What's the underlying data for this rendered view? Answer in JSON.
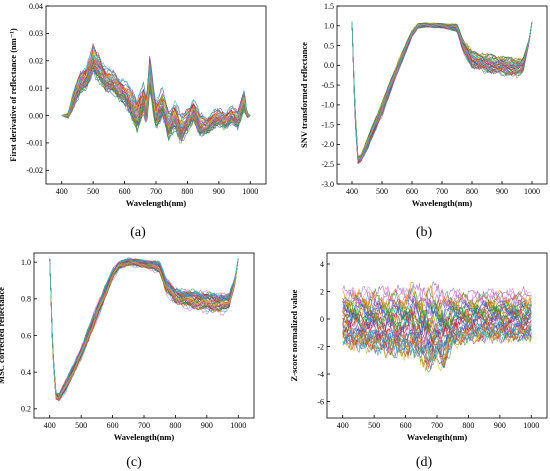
{
  "chart_data": [
    {
      "id": "a",
      "type": "line",
      "caption": "(a)",
      "xlabel": "Wavelength(nm)",
      "ylabel": "First derivative of reflectance (nm⁻¹)",
      "xlim": [
        350,
        1050
      ],
      "ylim": [
        -0.025,
        0.04
      ],
      "xticks": [
        400,
        500,
        600,
        700,
        800,
        900,
        1000
      ],
      "yticks": [
        -0.02,
        -0.01,
        0.0,
        0.01,
        0.02,
        0.03,
        0.04
      ],
      "ytick_labels": [
        "-0.02",
        "-0.01",
        "0.00",
        "0.01",
        "0.02",
        "0.03",
        "0.04"
      ],
      "band": {
        "x": [
          400,
          420,
          440,
          460,
          480,
          500,
          510,
          520,
          540,
          560,
          580,
          600,
          620,
          640,
          660,
          670,
          680,
          700,
          720,
          740,
          760,
          780,
          800,
          820,
          840,
          860,
          880,
          900,
          920,
          940,
          960,
          980,
          990,
          1000
        ],
        "mid": [
          0.0,
          0.0,
          0.006,
          0.012,
          0.014,
          0.02,
          0.018,
          0.017,
          0.013,
          0.012,
          0.01,
          0.008,
          0.004,
          0.0,
          0.006,
          0.0,
          0.015,
          0.0,
          0.004,
          -0.004,
          0.0,
          -0.006,
          -0.002,
          0.002,
          -0.004,
          -0.004,
          -0.002,
          -0.001,
          -0.002,
          0.0,
          -0.002,
          0.006,
          0.0,
          0.0
        ],
        "spread": [
          0.0,
          0.001,
          0.003,
          0.004,
          0.004,
          0.005,
          0.005,
          0.005,
          0.004,
          0.004,
          0.004,
          0.004,
          0.005,
          0.006,
          0.005,
          0.005,
          0.006,
          0.005,
          0.005,
          0.005,
          0.005,
          0.005,
          0.004,
          0.004,
          0.004,
          0.003,
          0.003,
          0.003,
          0.003,
          0.003,
          0.003,
          0.004,
          0.001,
          0.0
        ]
      }
    },
    {
      "id": "b",
      "type": "line",
      "caption": "(b)",
      "xlabel": "Wavelength(nm)",
      "ylabel": "SNV transformed reflectance",
      "xlim": [
        350,
        1050
      ],
      "ylim": [
        -3.0,
        1.5
      ],
      "xticks": [
        400,
        500,
        600,
        700,
        800,
        900,
        1000
      ],
      "yticks": [
        -3.0,
        -2.5,
        -2.0,
        -1.5,
        -1.0,
        -0.5,
        0.0,
        0.5,
        1.0,
        1.5
      ],
      "ytick_labels": [
        "-3.0",
        "-2.5",
        "-2.0",
        "-1.5",
        "-1.0",
        "-0.5",
        "0.0",
        "0.5",
        "1.0",
        "1.5"
      ],
      "band": {
        "x": [
          400,
          410,
          420,
          430,
          450,
          500,
          550,
          600,
          620,
          650,
          700,
          750,
          770,
          800,
          850,
          900,
          950,
          970,
          990,
          1000
        ],
        "mid": [
          1.1,
          -1.2,
          -2.4,
          -2.35,
          -2.0,
          -1.1,
          -0.1,
          0.8,
          1.0,
          1.02,
          1.0,
          0.95,
          0.5,
          0.15,
          0.05,
          0.0,
          -0.05,
          0.0,
          0.6,
          1.1
        ],
        "spread": [
          0.0,
          0.15,
          0.08,
          0.08,
          0.12,
          0.15,
          0.12,
          0.08,
          0.05,
          0.05,
          0.05,
          0.08,
          0.15,
          0.18,
          0.2,
          0.2,
          0.2,
          0.15,
          0.05,
          0.0
        ]
      }
    },
    {
      "id": "c",
      "type": "line",
      "caption": "(c)",
      "xlabel": "Wavelength(nm)",
      "ylabel": "MSC corrected reflectance",
      "xlim": [
        350,
        1050
      ],
      "ylim": [
        0.15,
        1.05
      ],
      "xticks": [
        400,
        500,
        600,
        700,
        800,
        900,
        1000
      ],
      "yticks": [
        0.2,
        0.4,
        0.6,
        0.8,
        1.0
      ],
      "ytick_labels": [
        "0.2",
        "0.4",
        "0.6",
        "0.8",
        "1.0"
      ],
      "band": {
        "x": [
          400,
          410,
          420,
          430,
          450,
          500,
          550,
          600,
          620,
          650,
          700,
          750,
          770,
          800,
          850,
          900,
          950,
          970,
          990,
          1000
        ],
        "mid": [
          1.02,
          0.5,
          0.27,
          0.26,
          0.32,
          0.5,
          0.72,
          0.93,
          0.98,
          1.0,
          0.99,
          0.97,
          0.87,
          0.81,
          0.79,
          0.78,
          0.77,
          0.78,
          0.9,
          1.02
        ],
        "spread": [
          0.0,
          0.02,
          0.02,
          0.02,
          0.03,
          0.03,
          0.04,
          0.03,
          0.02,
          0.02,
          0.02,
          0.03,
          0.04,
          0.04,
          0.05,
          0.05,
          0.05,
          0.04,
          0.02,
          0.0
        ]
      }
    },
    {
      "id": "d",
      "type": "line",
      "caption": "(d)",
      "xlabel": "Wavelength(nm)",
      "ylabel": "Z-score normalized value",
      "xlim": [
        350,
        1050
      ],
      "ylim": [
        -7.2,
        4.8
      ],
      "xticks": [
        400,
        500,
        600,
        700,
        800,
        900,
        1000
      ],
      "yticks": [
        -6,
        -4,
        -2,
        0,
        2,
        4
      ],
      "ytick_labels": [
        "-6",
        "-4",
        "-2",
        "0",
        "2",
        "4"
      ],
      "band": {
        "x": [
          400,
          450,
          500,
          550,
          600,
          620,
          650,
          680,
          700,
          720,
          750,
          800,
          850,
          900,
          950,
          1000
        ],
        "mid": [
          0.3,
          0.2,
          0.1,
          0.0,
          0.0,
          0.3,
          -0.2,
          -0.5,
          0.0,
          -0.6,
          0.2,
          0.3,
          0.4,
          0.4,
          0.4,
          0.4
        ],
        "spread": [
          1.8,
          1.9,
          2.0,
          2.1,
          2.2,
          2.3,
          2.4,
          2.8,
          2.4,
          2.6,
          1.8,
          1.6,
          1.6,
          1.6,
          1.6,
          1.6
        ]
      }
    }
  ],
  "series_palette": [
    "#1f77b4",
    "#ff7f0e",
    "#2ca02c",
    "#d62728",
    "#9467bd",
    "#8c564b",
    "#e377c2",
    "#7f7f7f",
    "#bcbd22",
    "#17becf",
    "#3b5bdb",
    "#c2255c",
    "#2b8a3e",
    "#e67700",
    "#5f3dc4"
  ]
}
